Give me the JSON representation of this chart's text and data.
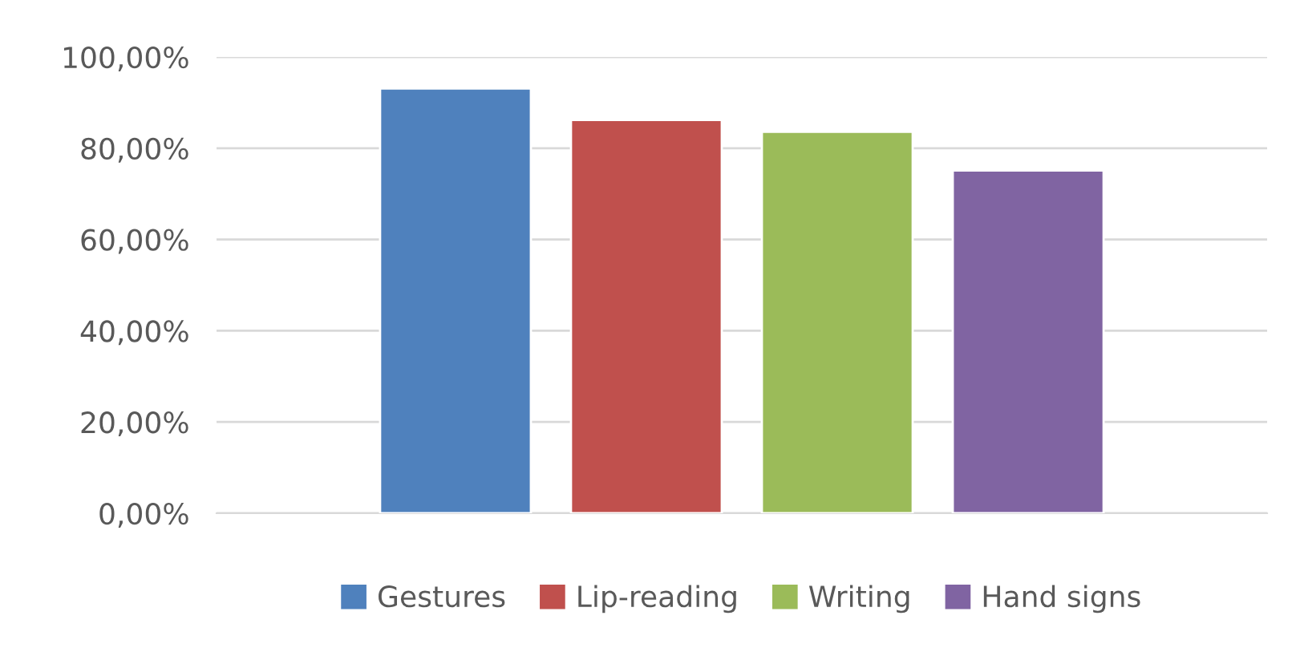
{
  "chart_data": {
    "type": "bar",
    "categories": [
      null
    ],
    "series": [
      {
        "name": "Gestures",
        "color": "#4f81bd",
        "values": [
          93.1
        ]
      },
      {
        "name": "Lip-reading",
        "color": "#c0504d",
        "values": [
          86.2
        ]
      },
      {
        "name": "Writing",
        "color": "#9bbb59",
        "values": [
          83.6
        ]
      },
      {
        "name": "Hand signs",
        "color": "#8064a2",
        "values": [
          75.1
        ]
      }
    ],
    "ylim": [
      0,
      100
    ],
    "yticks": [
      {
        "value": 0,
        "label": "0,00%"
      },
      {
        "value": 20,
        "label": "20,00%"
      },
      {
        "value": 40,
        "label": "40,00%"
      },
      {
        "value": 60,
        "label": "60,00%"
      },
      {
        "value": 80,
        "label": "80,00%"
      },
      {
        "value": 100,
        "label": "100,00%"
      }
    ],
    "grid": "y",
    "legend": "bottom"
  }
}
